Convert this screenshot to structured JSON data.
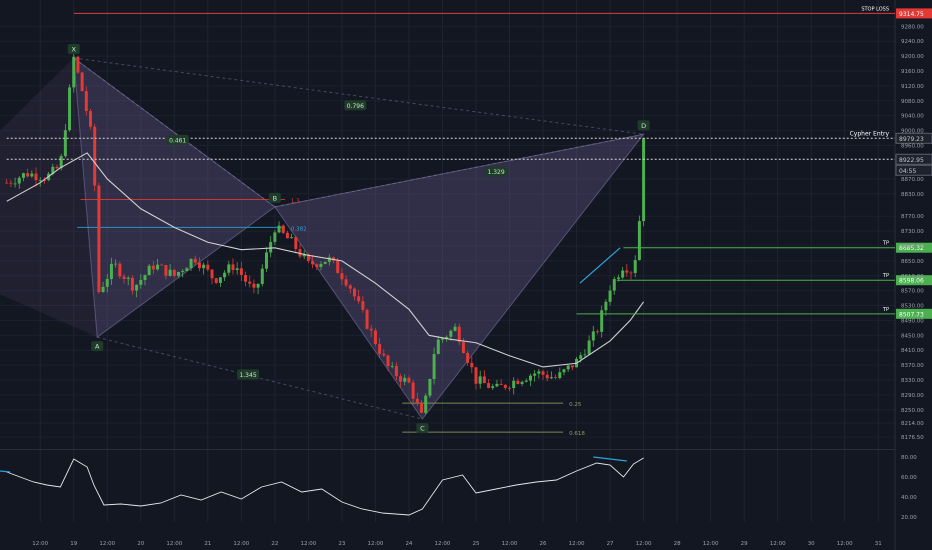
{
  "chart_data": {
    "type": "candlestick",
    "title": "",
    "xlabel": "",
    "ylabel": "",
    "colors": {
      "background": "#131722",
      "up": "#4caf50",
      "down": "#e53935",
      "pattern_fill": "#6b5a8e",
      "ma": "#d0d0d0",
      "tp": "#4caf50",
      "stop": "#e53935",
      "retrace_blue": "#2ea3d6",
      "axis_text": "#9aa0a8"
    },
    "price_axis": {
      "ylim": [
        8150,
        9340
      ],
      "ticks": [
        9280.0,
        9240.0,
        9200.0,
        9160.0,
        9120.0,
        9080.0,
        9040.0,
        9000.0,
        8960.0,
        8870.0,
        8830.0,
        8770.0,
        8730.0,
        8690.0,
        8650.0,
        8610.0,
        8570.0,
        8530.0,
        8490.0,
        8450.0,
        8410.0,
        8370.0,
        8330.0,
        8290.0,
        8250.0,
        8214.0,
        8176.5
      ]
    },
    "time_axis": {
      "ticks": [
        {
          "label": "12:00",
          "t": -0.5
        },
        {
          "label": "19",
          "t": 0
        },
        {
          "label": "12:00",
          "t": 0.5
        },
        {
          "label": "20",
          "t": 1
        },
        {
          "label": "12:00",
          "t": 1.5
        },
        {
          "label": "21",
          "t": 2
        },
        {
          "label": "12:00",
          "t": 2.5
        },
        {
          "label": "22",
          "t": 3
        },
        {
          "label": "12:00",
          "t": 3.5
        },
        {
          "label": "23",
          "t": 4
        },
        {
          "label": "12:00",
          "t": 4.5
        },
        {
          "label": "24",
          "t": 5
        },
        {
          "label": "12:00",
          "t": 5.5
        },
        {
          "label": "25",
          "t": 6
        },
        {
          "label": "12:00",
          "t": 6.5
        },
        {
          "label": "26",
          "t": 7
        },
        {
          "label": "12:00",
          "t": 7.5
        },
        {
          "label": "27",
          "t": 8
        },
        {
          "label": "12:00",
          "t": 8.5
        },
        {
          "label": "28",
          "t": 9
        },
        {
          "label": "12:00",
          "t": 9.5
        },
        {
          "label": "29",
          "t": 10
        },
        {
          "label": "12:00",
          "t": 10.5
        },
        {
          "label": "30",
          "t": 11
        },
        {
          "label": "12:00",
          "t": 11.5
        },
        {
          "label": "31",
          "t": 12
        }
      ]
    },
    "pattern_points": [
      {
        "label": "X",
        "t": 0.0,
        "price": 9195
      },
      {
        "label": "A",
        "t": 0.35,
        "price": 8445
      },
      {
        "label": "B",
        "t": 3.0,
        "price": 8795
      },
      {
        "label": "C",
        "t": 5.2,
        "price": 8225
      },
      {
        "label": "D",
        "t": 8.5,
        "price": 8990
      }
    ],
    "ratios": [
      {
        "text": "0.796",
        "t": 4.2,
        "price": 9068
      },
      {
        "text": "0.461",
        "t": 1.55,
        "price": 8975
      },
      {
        "text": "1.329",
        "t": 6.3,
        "price": 8890
      },
      {
        "text": "1.345",
        "t": 2.6,
        "price": 8345
      }
    ],
    "levels": [
      {
        "name": "stop_loss",
        "label": "STOP LOSS",
        "price": 9314.75,
        "price_label": "9314.75",
        "color": "#e53935",
        "t_start": 0.0
      },
      {
        "name": "cypher_entry",
        "label": "Cypher Entry",
        "price": 8979.23,
        "price_label": "8979.23",
        "color": "#d8d8d8",
        "t_start": -1.0,
        "dashed": true
      },
      {
        "name": "current",
        "label": "",
        "price": 8922.95,
        "price_label": "8922.95",
        "color": "#d8d8d8",
        "t_start": -1.0,
        "dashed": true
      },
      {
        "name": "tp1",
        "label": "TP",
        "price": 8685.32,
        "price_label": "8685.32",
        "color": "#4caf50",
        "t_start": 8.2
      },
      {
        "name": "tp2",
        "label": "TP",
        "price": 8598.06,
        "price_label": "8598.06",
        "color": "#4caf50",
        "t_start": 8.1
      },
      {
        "name": "tp3",
        "label": "TP",
        "price": 8507.73,
        "price_label": "8507.73",
        "color": "#4caf50",
        "t_start": 7.5
      }
    ],
    "countdown_label": "04:55",
    "fib_lines": [
      {
        "text": "1.3",
        "price": 8815,
        "t0": 0.1,
        "t1": 3.15,
        "color": "#e53935"
      },
      {
        "text": "0.382",
        "price": 8740,
        "t0": 0.05,
        "t1": 3.15,
        "color": "#2ea3d6"
      },
      {
        "text": "0.25",
        "price": 8268,
        "t0": 4.9,
        "t1": 7.3,
        "color": "#8aa05a"
      },
      {
        "text": "0.618",
        "price": 8190,
        "t0": 4.9,
        "t1": 7.3,
        "color": "#8aa05a"
      }
    ],
    "ma": [
      [
        -1.0,
        8810
      ],
      [
        -0.5,
        8860
      ],
      [
        -0.2,
        8900
      ],
      [
        0.2,
        8940
      ],
      [
        0.5,
        8870
      ],
      [
        1.0,
        8790
      ],
      [
        1.5,
        8740
      ],
      [
        2.0,
        8700
      ],
      [
        2.5,
        8680
      ],
      [
        3.0,
        8685
      ],
      [
        3.5,
        8665
      ],
      [
        4.0,
        8650
      ],
      [
        4.5,
        8590
      ],
      [
        5.0,
        8520
      ],
      [
        5.3,
        8450
      ],
      [
        5.6,
        8440
      ],
      [
        6.0,
        8430
      ],
      [
        6.5,
        8395
      ],
      [
        7.0,
        8365
      ],
      [
        7.5,
        8375
      ],
      [
        8.0,
        8435
      ],
      [
        8.3,
        8490
      ],
      [
        8.5,
        8540
      ]
    ],
    "price_path": [
      [
        -1.0,
        8860
      ],
      [
        -0.7,
        8885
      ],
      [
        -0.4,
        8875
      ],
      [
        -0.2,
        8905
      ],
      [
        0.0,
        9195
      ],
      [
        0.15,
        9090
      ],
      [
        0.3,
        8950
      ],
      [
        0.35,
        8560
      ],
      [
        0.6,
        8640
      ],
      [
        0.9,
        8580
      ],
      [
        1.2,
        8640
      ],
      [
        1.5,
        8610
      ],
      [
        1.8,
        8660
      ],
      [
        2.1,
        8600
      ],
      [
        2.4,
        8640
      ],
      [
        2.7,
        8560
      ],
      [
        3.0,
        8740
      ],
      [
        3.25,
        8700
      ],
      [
        3.5,
        8640
      ],
      [
        3.8,
        8655
      ],
      [
        4.1,
        8590
      ],
      [
        4.4,
        8470
      ],
      [
        4.7,
        8360
      ],
      [
        5.0,
        8320
      ],
      [
        5.2,
        8225
      ],
      [
        5.4,
        8430
      ],
      [
        5.7,
        8470
      ],
      [
        6.0,
        8330
      ],
      [
        6.3,
        8305
      ],
      [
        6.6,
        8330
      ],
      [
        6.9,
        8350
      ],
      [
        7.2,
        8335
      ],
      [
        7.5,
        8380
      ],
      [
        7.8,
        8460
      ],
      [
        8.0,
        8580
      ],
      [
        8.2,
        8640
      ],
      [
        8.35,
        8620
      ],
      [
        8.45,
        8780
      ],
      [
        8.5,
        8990
      ]
    ],
    "rsi": {
      "ylim": [
        15,
        85
      ],
      "ticks": [
        80.0,
        60.0,
        40.0,
        20.0
      ],
      "values": [
        [
          -1.0,
          65
        ],
        [
          -0.8,
          60
        ],
        [
          -0.6,
          55
        ],
        [
          -0.4,
          52
        ],
        [
          -0.2,
          50
        ],
        [
          0.0,
          78
        ],
        [
          0.2,
          70
        ],
        [
          0.3,
          52
        ],
        [
          0.45,
          32
        ],
        [
          0.7,
          33
        ],
        [
          1.0,
          31
        ],
        [
          1.3,
          34
        ],
        [
          1.6,
          42
        ],
        [
          1.9,
          37
        ],
        [
          2.2,
          45
        ],
        [
          2.5,
          38
        ],
        [
          2.8,
          50
        ],
        [
          3.1,
          55
        ],
        [
          3.4,
          45
        ],
        [
          3.7,
          48
        ],
        [
          4.0,
          35
        ],
        [
          4.3,
          28
        ],
        [
          4.6,
          24
        ],
        [
          5.0,
          22
        ],
        [
          5.2,
          28
        ],
        [
          5.5,
          57
        ],
        [
          5.8,
          62
        ],
        [
          6.0,
          44
        ],
        [
          6.3,
          48
        ],
        [
          6.6,
          52
        ],
        [
          6.9,
          55
        ],
        [
          7.2,
          57
        ],
        [
          7.5,
          66
        ],
        [
          7.8,
          74
        ],
        [
          8.0,
          72
        ],
        [
          8.2,
          60
        ],
        [
          8.35,
          73
        ],
        [
          8.5,
          79
        ]
      ]
    }
  }
}
